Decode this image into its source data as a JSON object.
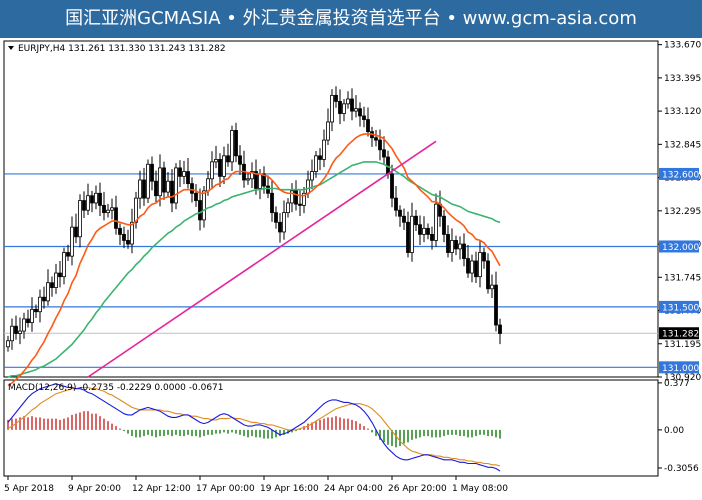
{
  "banner": {
    "text": "国汇亚洲GCMASIA • 外汇贵金属投资首选平台 • www.gcm-asia.com"
  },
  "chart_data": {
    "type": "candlestick",
    "symbol_header": "EURJPY,H4  131.261 131.330 131.243 131.282",
    "ylim": [
      130.92,
      133.7
    ],
    "y_ticks": [
      133.67,
      133.395,
      133.12,
      132.845,
      132.57,
      132.295,
      132.02,
      131.745,
      131.47,
      131.195,
      130.92
    ],
    "y_tick_labels": [
      "133.670",
      "133.395",
      "133.120",
      "132.845",
      "132.570",
      "132.295",
      "132.020",
      "131.745",
      "131.470",
      "131.195",
      "130.920"
    ],
    "x_tick_labels": [
      "5 Apr 2018",
      "9 Apr 20:00",
      "12 Apr 12:00",
      "17 Apr 00:00",
      "19 Apr 16:00",
      "24 Apr 04:00",
      "26 Apr 20:00",
      "1 May 08:00"
    ],
    "x_tick_index": [
      0,
      16,
      32,
      48,
      64,
      80,
      96,
      112
    ],
    "horizontal_levels": [
      {
        "value": 132.6,
        "label": "132.600"
      },
      {
        "value": 132.0,
        "label": "132.000"
      },
      {
        "value": 131.5,
        "label": "131.500"
      },
      {
        "value": 131.0,
        "label": "131.000"
      }
    ],
    "current_price": {
      "value": 131.282,
      "label": "131.282"
    },
    "trendline": {
      "from": {
        "index": 20,
        "price": 130.9
      },
      "to": {
        "index": 107,
        "price": 132.87
      }
    },
    "series": {
      "close": [
        131.22,
        131.34,
        131.28,
        131.3,
        131.4,
        131.37,
        131.48,
        131.46,
        131.58,
        131.55,
        131.7,
        131.66,
        131.78,
        131.75,
        131.95,
        131.92,
        132.16,
        132.08,
        132.38,
        132.3,
        132.42,
        132.36,
        132.44,
        132.34,
        132.28,
        132.3,
        132.32,
        132.15,
        132.1,
        132.05,
        132.02,
        132.2,
        132.4,
        132.55,
        132.4,
        132.68,
        132.54,
        132.42,
        132.65,
        132.45,
        132.54,
        132.36,
        132.65,
        132.58,
        132.62,
        132.52,
        132.44,
        132.38,
        132.22,
        132.46,
        132.56,
        132.7,
        132.72,
        132.58,
        132.75,
        132.7,
        132.96,
        132.75,
        132.68,
        132.55,
        132.56,
        132.62,
        132.48,
        132.6,
        132.5,
        132.44,
        132.28,
        132.2,
        132.12,
        132.28,
        132.36,
        132.46,
        132.35,
        132.34,
        132.44,
        132.55,
        132.62,
        132.75,
        132.72,
        132.88,
        133.03,
        133.25,
        133.2,
        133.1,
        133.18,
        133.22,
        133.12,
        133.14,
        133.08,
        133.05,
        132.95,
        132.9,
        132.88,
        132.8,
        132.74,
        132.6,
        132.4,
        132.3,
        132.25,
        132.2,
        131.95,
        132.25,
        132.18,
        132.1,
        132.15,
        132.1,
        132.05,
        132.35,
        132.25,
        132.1,
        131.95,
        132.05,
        131.98,
        132.02,
        131.9,
        131.78,
        131.88,
        131.75,
        131.95,
        131.88,
        131.65,
        131.68,
        131.35,
        131.28
      ],
      "ema_fast": [
        130.85,
        130.87,
        130.9,
        130.93,
        130.97,
        131.01,
        131.06,
        131.1,
        131.16,
        131.21,
        131.28,
        131.34,
        131.41,
        131.47,
        131.55,
        131.61,
        131.7,
        131.76,
        131.86,
        131.93,
        132.01,
        132.06,
        132.12,
        132.15,
        132.17,
        132.19,
        132.21,
        132.21,
        132.2,
        132.19,
        132.18,
        132.18,
        132.21,
        132.25,
        132.27,
        132.32,
        132.35,
        132.36,
        132.39,
        132.4,
        132.41,
        132.41,
        132.43,
        132.45,
        132.47,
        132.47,
        132.47,
        132.46,
        132.44,
        132.44,
        132.46,
        132.48,
        132.51,
        132.52,
        132.55,
        132.56,
        132.6,
        132.62,
        132.62,
        132.62,
        132.61,
        132.61,
        132.6,
        132.6,
        132.59,
        132.58,
        132.55,
        132.51,
        132.47,
        132.45,
        132.44,
        132.44,
        132.43,
        132.42,
        132.42,
        132.44,
        132.46,
        132.49,
        132.52,
        132.56,
        132.61,
        132.68,
        132.73,
        132.76,
        132.8,
        132.84,
        132.87,
        132.9,
        132.92,
        132.93,
        132.93,
        132.93,
        132.92,
        132.91,
        132.89,
        132.85,
        132.81,
        132.75,
        132.7,
        132.65,
        132.57,
        132.54,
        132.51,
        132.47,
        132.44,
        132.41,
        132.37,
        132.37,
        132.35,
        132.32,
        132.28,
        132.25,
        132.22,
        132.2,
        132.17,
        132.12,
        132.1,
        132.06,
        132.05,
        132.03,
        131.99,
        131.96,
        131.9,
        131.84
      ],
      "sma_slow": [
        130.92,
        130.93,
        130.93,
        130.94,
        130.95,
        130.96,
        130.97,
        130.98,
        131.0,
        131.01,
        131.03,
        131.05,
        131.07,
        131.1,
        131.13,
        131.16,
        131.19,
        131.23,
        131.27,
        131.31,
        131.36,
        131.4,
        131.45,
        131.49,
        131.54,
        131.58,
        131.62,
        131.66,
        131.7,
        131.74,
        131.78,
        131.81,
        131.85,
        131.88,
        131.92,
        131.95,
        131.99,
        132.02,
        132.05,
        132.08,
        132.11,
        132.13,
        132.16,
        132.18,
        132.21,
        132.23,
        132.25,
        132.27,
        132.28,
        132.3,
        132.32,
        132.33,
        132.35,
        132.36,
        132.38,
        132.39,
        132.41,
        132.42,
        132.43,
        132.44,
        132.45,
        132.46,
        132.47,
        132.47,
        132.48,
        132.48,
        132.48,
        132.48,
        132.47,
        132.47,
        132.47,
        132.47,
        132.47,
        132.47,
        132.47,
        132.48,
        132.49,
        132.5,
        132.51,
        132.53,
        132.55,
        132.57,
        132.59,
        132.61,
        132.63,
        132.65,
        132.67,
        132.68,
        132.69,
        132.7,
        132.7,
        132.7,
        132.7,
        132.69,
        132.68,
        132.66,
        132.65,
        132.62,
        132.6,
        132.58,
        132.55,
        132.53,
        132.51,
        132.49,
        132.47,
        132.45,
        132.43,
        132.42,
        132.41,
        132.39,
        132.37,
        132.35,
        132.34,
        132.33,
        132.31,
        132.29,
        132.28,
        132.27,
        132.26,
        132.25,
        132.24,
        132.23,
        132.21,
        132.2
      ]
    },
    "macd": {
      "header": "MACD(12,26,9) -0.2735 -0.2229 0.0000 -0.0671",
      "ylim": [
        -0.37,
        0.4
      ],
      "y_ticks": [
        0.377,
        0.0,
        -0.3056
      ],
      "y_tick_labels": [
        "0.377",
        "0.00",
        "-0.3056"
      ],
      "histogram": [
        0.08,
        0.09,
        0.09,
        0.1,
        0.11,
        0.1,
        0.11,
        0.1,
        0.1,
        0.09,
        0.09,
        0.09,
        0.09,
        0.08,
        0.09,
        0.1,
        0.12,
        0.13,
        0.14,
        0.15,
        0.15,
        0.13,
        0.13,
        0.11,
        0.09,
        0.07,
        0.05,
        0.03,
        0.01,
        -0.01,
        -0.03,
        -0.05,
        -0.06,
        -0.06,
        -0.05,
        -0.04,
        -0.05,
        -0.06,
        -0.05,
        -0.05,
        -0.04,
        -0.05,
        -0.04,
        -0.05,
        -0.05,
        -0.04,
        -0.05,
        -0.05,
        -0.06,
        -0.05,
        -0.04,
        -0.04,
        -0.03,
        -0.03,
        -0.02,
        -0.03,
        -0.02,
        -0.03,
        -0.04,
        -0.05,
        -0.06,
        -0.05,
        -0.06,
        -0.06,
        -0.07,
        -0.07,
        -0.07,
        -0.06,
        -0.05,
        -0.04,
        -0.03,
        -0.02,
        -0.01,
        0.01,
        0.03,
        0.05,
        0.06,
        0.07,
        0.08,
        0.09,
        0.1,
        0.1,
        0.11,
        0.1,
        0.09,
        0.09,
        0.08,
        0.07,
        0.05,
        0.03,
        0.01,
        -0.02,
        -0.05,
        -0.08,
        -0.1,
        -0.12,
        -0.13,
        -0.14,
        -0.13,
        -0.11,
        -0.1,
        -0.08,
        -0.07,
        -0.06,
        -0.05,
        -0.05,
        -0.06,
        -0.06,
        -0.06,
        -0.05,
        -0.04,
        -0.04,
        -0.04,
        -0.05,
        -0.05,
        -0.06,
        -0.06,
        -0.05,
        -0.04,
        -0.04,
        -0.05,
        -0.05,
        -0.06,
        -0.07
      ],
      "macd_line": [
        0.06,
        0.1,
        0.14,
        0.18,
        0.22,
        0.26,
        0.29,
        0.31,
        0.33,
        0.34,
        0.35,
        0.36,
        0.37,
        0.36,
        0.35,
        0.34,
        0.34,
        0.33,
        0.33,
        0.32,
        0.3,
        0.29,
        0.27,
        0.25,
        0.23,
        0.21,
        0.19,
        0.17,
        0.15,
        0.13,
        0.12,
        0.12,
        0.14,
        0.16,
        0.17,
        0.18,
        0.17,
        0.16,
        0.15,
        0.13,
        0.11,
        0.1,
        0.1,
        0.11,
        0.12,
        0.12,
        0.1,
        0.08,
        0.06,
        0.05,
        0.06,
        0.08,
        0.1,
        0.12,
        0.13,
        0.12,
        0.1,
        0.08,
        0.06,
        0.04,
        0.03,
        0.03,
        0.04,
        0.04,
        0.03,
        0.02,
        0.0,
        -0.02,
        -0.04,
        -0.03,
        -0.02,
        0.0,
        0.02,
        0.04,
        0.06,
        0.09,
        0.12,
        0.15,
        0.18,
        0.21,
        0.23,
        0.24,
        0.24,
        0.23,
        0.22,
        0.22,
        0.21,
        0.2,
        0.18,
        0.15,
        0.11,
        0.06,
        0.0,
        -0.06,
        -0.11,
        -0.15,
        -0.18,
        -0.21,
        -0.23,
        -0.24,
        -0.24,
        -0.23,
        -0.22,
        -0.21,
        -0.2,
        -0.2,
        -0.21,
        -0.22,
        -0.23,
        -0.24,
        -0.24,
        -0.24,
        -0.25,
        -0.26,
        -0.26,
        -0.27,
        -0.27,
        -0.27,
        -0.28,
        -0.29,
        -0.3,
        -0.3,
        -0.31,
        -0.33
      ],
      "signal_line": [
        0.01,
        0.03,
        0.05,
        0.08,
        0.1,
        0.13,
        0.16,
        0.18,
        0.21,
        0.23,
        0.25,
        0.27,
        0.29,
        0.3,
        0.31,
        0.32,
        0.33,
        0.33,
        0.34,
        0.34,
        0.34,
        0.33,
        0.33,
        0.32,
        0.31,
        0.29,
        0.28,
        0.26,
        0.24,
        0.22,
        0.2,
        0.18,
        0.17,
        0.16,
        0.16,
        0.16,
        0.16,
        0.16,
        0.16,
        0.15,
        0.15,
        0.14,
        0.13,
        0.13,
        0.12,
        0.12,
        0.11,
        0.11,
        0.1,
        0.09,
        0.09,
        0.08,
        0.08,
        0.09,
        0.09,
        0.09,
        0.1,
        0.09,
        0.09,
        0.08,
        0.07,
        0.06,
        0.06,
        0.05,
        0.05,
        0.04,
        0.04,
        0.03,
        0.02,
        0.01,
        0.0,
        0.0,
        0.0,
        0.01,
        0.02,
        0.03,
        0.05,
        0.07,
        0.09,
        0.11,
        0.13,
        0.15,
        0.17,
        0.18,
        0.19,
        0.2,
        0.21,
        0.21,
        0.21,
        0.2,
        0.19,
        0.17,
        0.14,
        0.11,
        0.07,
        0.03,
        -0.01,
        -0.05,
        -0.09,
        -0.12,
        -0.15,
        -0.17,
        -0.18,
        -0.19,
        -0.2,
        -0.2,
        -0.2,
        -0.21,
        -0.21,
        -0.22,
        -0.22,
        -0.23,
        -0.23,
        -0.24,
        -0.24,
        -0.25,
        -0.25,
        -0.26,
        -0.26,
        -0.27,
        -0.27,
        -0.28,
        -0.28,
        -0.29
      ]
    },
    "colors": {
      "candle": "#000000",
      "ema_fast": "#ff5a14",
      "sma_slow": "#3cb371",
      "trendline": "#e6239a",
      "level_line": "#3377dd",
      "label_bg": "#3377dd",
      "histogram": "#2e8b2e",
      "histogram_neg": "#2e8b2e",
      "histogram_pos": "#d04040",
      "macd_line": "#1a1adc",
      "signal_line": "#e08a1e",
      "grid_border": "#000000",
      "price_line": "#c0c0c0",
      "banner": "#2d6a9f"
    }
  }
}
